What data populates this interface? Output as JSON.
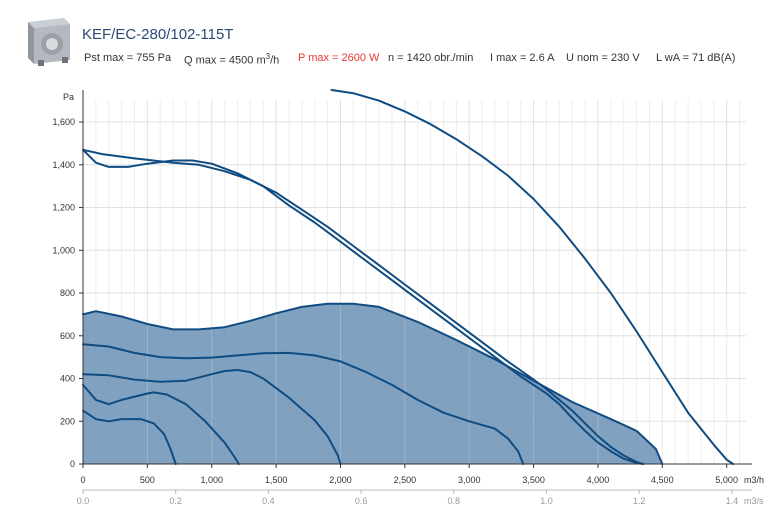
{
  "header": {
    "title": "KEF/EC-280/102-115T",
    "specs": {
      "pst_max": "Pst max = 755 Pa",
      "q_max_prefix": "Q max = 4500 m",
      "q_max_sup": "3",
      "q_max_suffix": "/h",
      "p_max": "P max = 2600 W",
      "n": "n = 1420 obr./min",
      "i_max": "I max = 2.6 A",
      "u_nom": "U nom = 230 V",
      "lwa": "L wA = 71 dB(A)"
    },
    "colors": {
      "title": "#2c4a74",
      "p_max": "#e53935"
    }
  },
  "chart_data": {
    "type": "line",
    "ylabel": "Pa",
    "xlabel": "m3/h",
    "xlabel_secondary": "m3/s",
    "xlim": [
      0,
      5150
    ],
    "ylim": [
      0,
      1750
    ],
    "x_ticks": [
      0,
      500,
      1000,
      1500,
      2000,
      2500,
      3000,
      3500,
      4000,
      4500,
      5000
    ],
    "x_tick_labels": [
      "0",
      "500",
      "1,000",
      "1,500",
      "2,000",
      "2,500",
      "3,000",
      "3,500",
      "4,000",
      "4,500",
      "5,000"
    ],
    "y_ticks": [
      0,
      200,
      400,
      600,
      800,
      1000,
      1200,
      1400,
      1600
    ],
    "y_tick_labels": [
      "0",
      "200",
      "400",
      "600",
      "800",
      "1,000",
      "1,200",
      "1,400",
      "1,600"
    ],
    "x2_ticks": [
      0,
      0.2,
      0.4,
      0.6,
      0.8,
      1.0,
      1.2,
      1.4
    ],
    "x2_tick_labels": [
      "0.0",
      "0.2",
      "0.4",
      "0.6",
      "0.8",
      "1.0",
      "1.2",
      "1.4"
    ],
    "grid": true,
    "colors": {
      "curve": "#0f4c81",
      "fill": "#6b90b6",
      "grid": "#e0e0e0"
    },
    "operating_area": [
      [
        0,
        700
      ],
      [
        100,
        715
      ],
      [
        300,
        690
      ],
      [
        500,
        655
      ],
      [
        700,
        630
      ],
      [
        900,
        630
      ],
      [
        1100,
        640
      ],
      [
        1300,
        670
      ],
      [
        1500,
        705
      ],
      [
        1700,
        735
      ],
      [
        1900,
        750
      ],
      [
        2100,
        750
      ],
      [
        2300,
        735
      ],
      [
        2600,
        665
      ],
      [
        2900,
        580
      ],
      [
        3200,
        490
      ],
      [
        3500,
        390
      ],
      [
        3800,
        290
      ],
      [
        4100,
        210
      ],
      [
        4300,
        155
      ],
      [
        4450,
        70
      ],
      [
        4500,
        0
      ],
      [
        0,
        0
      ]
    ],
    "series": [
      {
        "values": [
          [
            0,
            700
          ],
          [
            100,
            715
          ],
          [
            300,
            690
          ],
          [
            500,
            655
          ],
          [
            700,
            630
          ],
          [
            900,
            630
          ],
          [
            1100,
            640
          ],
          [
            1300,
            670
          ],
          [
            1500,
            705
          ],
          [
            1700,
            735
          ],
          [
            1900,
            750
          ],
          [
            2100,
            750
          ],
          [
            2300,
            735
          ],
          [
            2600,
            665
          ],
          [
            2900,
            580
          ],
          [
            3200,
            490
          ],
          [
            3500,
            390
          ],
          [
            3800,
            290
          ],
          [
            4100,
            210
          ],
          [
            4300,
            155
          ],
          [
            4450,
            70
          ],
          [
            4500,
            0
          ]
        ]
      },
      {
        "values": [
          [
            0,
            560
          ],
          [
            200,
            550
          ],
          [
            400,
            520
          ],
          [
            600,
            500
          ],
          [
            800,
            495
          ],
          [
            1000,
            498
          ],
          [
            1200,
            508
          ],
          [
            1400,
            518
          ],
          [
            1600,
            520
          ],
          [
            1800,
            508
          ],
          [
            2000,
            480
          ],
          [
            2200,
            430
          ],
          [
            2400,
            370
          ],
          [
            2600,
            300
          ],
          [
            2800,
            240
          ],
          [
            3000,
            200
          ],
          [
            3200,
            165
          ],
          [
            3300,
            120
          ],
          [
            3380,
            60
          ],
          [
            3420,
            0
          ]
        ]
      },
      {
        "values": [
          [
            0,
            420
          ],
          [
            200,
            415
          ],
          [
            400,
            395
          ],
          [
            600,
            385
          ],
          [
            800,
            390
          ],
          [
            1000,
            420
          ],
          [
            1100,
            435
          ],
          [
            1200,
            440
          ],
          [
            1300,
            430
          ],
          [
            1400,
            400
          ],
          [
            1600,
            310
          ],
          [
            1800,
            205
          ],
          [
            1900,
            130
          ],
          [
            1980,
            40
          ],
          [
            2000,
            0
          ]
        ]
      },
      {
        "values": [
          [
            0,
            370
          ],
          [
            100,
            300
          ],
          [
            200,
            280
          ],
          [
            300,
            300
          ],
          [
            500,
            330
          ],
          [
            550,
            335
          ],
          [
            650,
            325
          ],
          [
            800,
            280
          ],
          [
            950,
            200
          ],
          [
            1100,
            100
          ],
          [
            1180,
            30
          ],
          [
            1210,
            0
          ]
        ]
      },
      {
        "values": [
          [
            0,
            250
          ],
          [
            100,
            210
          ],
          [
            200,
            200
          ],
          [
            300,
            210
          ],
          [
            450,
            210
          ],
          [
            550,
            190
          ],
          [
            630,
            140
          ],
          [
            680,
            70
          ],
          [
            720,
            0
          ]
        ]
      },
      {
        "values": [
          [
            0,
            1470
          ],
          [
            150,
            1450
          ],
          [
            400,
            1430
          ],
          [
            700,
            1410
          ],
          [
            900,
            1400
          ],
          [
            1100,
            1370
          ],
          [
            1300,
            1330
          ],
          [
            1500,
            1270
          ],
          [
            1700,
            1190
          ],
          [
            1900,
            1110
          ],
          [
            2100,
            1020
          ],
          [
            2300,
            930
          ],
          [
            2500,
            840
          ],
          [
            2700,
            750
          ],
          [
            2900,
            660
          ],
          [
            3100,
            570
          ],
          [
            3300,
            480
          ],
          [
            3500,
            395
          ],
          [
            3600,
            350
          ],
          [
            3700,
            300
          ],
          [
            3800,
            250
          ],
          [
            3900,
            190
          ],
          [
            4000,
            130
          ],
          [
            4100,
            80
          ],
          [
            4200,
            40
          ],
          [
            4300,
            10
          ],
          [
            4350,
            0
          ]
        ]
      },
      {
        "values": [
          [
            0,
            1470
          ],
          [
            100,
            1410
          ],
          [
            200,
            1390
          ],
          [
            350,
            1390
          ],
          [
            500,
            1405
          ],
          [
            700,
            1420
          ],
          [
            850,
            1420
          ],
          [
            1000,
            1405
          ],
          [
            1200,
            1360
          ],
          [
            1400,
            1300
          ],
          [
            1600,
            1210
          ],
          [
            1800,
            1130
          ],
          [
            2000,
            1040
          ],
          [
            2200,
            950
          ],
          [
            2400,
            860
          ],
          [
            2600,
            770
          ],
          [
            2800,
            680
          ],
          [
            3000,
            590
          ],
          [
            3200,
            500
          ],
          [
            3400,
            410
          ],
          [
            3600,
            330
          ],
          [
            3700,
            280
          ],
          [
            3800,
            215
          ],
          [
            3900,
            155
          ],
          [
            4000,
            100
          ],
          [
            4100,
            60
          ],
          [
            4200,
            25
          ],
          [
            4300,
            5
          ],
          [
            4350,
            0
          ]
        ]
      },
      {
        "values": [
          [
            1930,
            1750
          ],
          [
            2100,
            1735
          ],
          [
            2300,
            1700
          ],
          [
            2500,
            1650
          ],
          [
            2700,
            1590
          ],
          [
            2900,
            1520
          ],
          [
            3100,
            1440
          ],
          [
            3300,
            1350
          ],
          [
            3500,
            1240
          ],
          [
            3700,
            1110
          ],
          [
            3900,
            960
          ],
          [
            4100,
            800
          ],
          [
            4300,
            620
          ],
          [
            4500,
            430
          ],
          [
            4700,
            240
          ],
          [
            4900,
            90
          ],
          [
            5000,
            20
          ],
          [
            5050,
            0
          ]
        ]
      }
    ]
  }
}
